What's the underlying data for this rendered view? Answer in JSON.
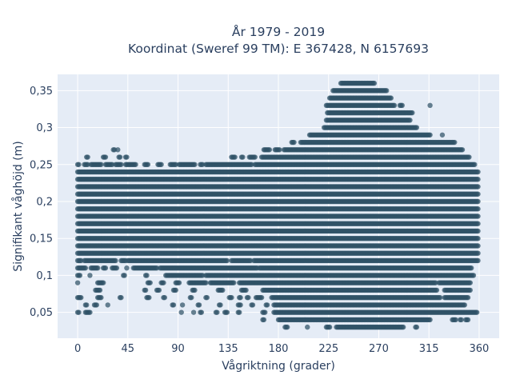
{
  "chart_data": {
    "type": "scatter",
    "title_line1": "År 1979 - 2019",
    "title_line2": "Koordinat (Sweref 99 TM): E 367428, N 6157693",
    "xlabel": "Vågriktning (grader)",
    "ylabel": "Signifikant våghöjd (m)",
    "xlim": [
      -18,
      378
    ],
    "ylim": [
      0.015,
      0.372
    ],
    "x_ticks": [
      0,
      45,
      90,
      135,
      180,
      225,
      270,
      315,
      360
    ],
    "x_tick_labels": [
      "0",
      "45",
      "90",
      "135",
      "180",
      "225",
      "270",
      "315",
      "360"
    ],
    "y_ticks": [
      0.05,
      0.1,
      0.15,
      0.2,
      0.25,
      0.3,
      0.35
    ],
    "y_tick_labels": [
      "0,05",
      "0,1",
      "0,15",
      "0,2",
      "0,25",
      "0,3",
      "0,35"
    ],
    "grid": true,
    "legend": "none",
    "marker_color": "#2f5266",
    "plot_background": "#e5ecf6",
    "value_step_m": 0.01,
    "density_bands": [
      {
        "y": 0.03,
        "x_ranges": [
          [
            186,
            188
          ],
          [
            206,
            206
          ],
          [
            223,
            226
          ],
          [
            232,
            292
          ],
          [
            303,
            304
          ]
        ]
      },
      {
        "y": 0.04,
        "x_ranges": [
          [
            166,
            167
          ],
          [
            180,
            316
          ],
          [
            336,
            339
          ],
          [
            343,
            344
          ],
          [
            348,
            350
          ]
        ]
      },
      {
        "y": 0.05,
        "x_ranges": [
          [
            0,
            1
          ],
          [
            7,
            11
          ],
          [
            93,
            93
          ],
          [
            104,
            104
          ],
          [
            110,
            111
          ],
          [
            124,
            125
          ],
          [
            132,
            134
          ],
          [
            144,
            145
          ],
          [
            166,
            168
          ],
          [
            176,
            358
          ]
        ]
      },
      {
        "y": 0.06,
        "x_ranges": [
          [
            7,
            8
          ],
          [
            15,
            17
          ],
          [
            27,
            27
          ],
          [
            85,
            86
          ],
          [
            94,
            94
          ],
          [
            108,
            109
          ],
          [
            127,
            128
          ],
          [
            144,
            146
          ],
          [
            156,
            157
          ],
          [
            169,
            170
          ],
          [
            176,
            347
          ]
        ]
      },
      {
        "y": 0.07,
        "x_ranges": [
          [
            0,
            3
          ],
          [
            18,
            21
          ],
          [
            38,
            39
          ],
          [
            62,
            64
          ],
          [
            77,
            78
          ],
          [
            101,
            102
          ],
          [
            115,
            116
          ],
          [
            136,
            138
          ],
          [
            145,
            146
          ],
          [
            152,
            153
          ],
          [
            160,
            165
          ],
          [
            174,
            325
          ],
          [
            329,
            350
          ]
        ]
      },
      {
        "y": 0.08,
        "x_ranges": [
          [
            16,
            20
          ],
          [
            60,
            61
          ],
          [
            71,
            73
          ],
          [
            86,
            88
          ],
          [
            103,
            105
          ],
          [
            126,
            130
          ],
          [
            147,
            151
          ],
          [
            166,
            322
          ],
          [
            329,
            352
          ]
        ]
      },
      {
        "y": 0.09,
        "x_ranges": [
          [
            0,
            0
          ],
          [
            18,
            23
          ],
          [
            63,
            65
          ],
          [
            75,
            77
          ],
          [
            88,
            91
          ],
          [
            100,
            115
          ],
          [
            119,
            140
          ],
          [
            145,
            321
          ],
          [
            324,
            352
          ]
        ]
      },
      {
        "y": 0.1,
        "x_ranges": [
          [
            0,
            2
          ],
          [
            11,
            11
          ],
          [
            41,
            42
          ],
          [
            61,
            62
          ],
          [
            79,
            112
          ],
          [
            115,
            355
          ]
        ]
      },
      {
        "y": 0.11,
        "x_ranges": [
          [
            0,
            7
          ],
          [
            12,
            18
          ],
          [
            23,
            25
          ],
          [
            31,
            35
          ],
          [
            44,
            44
          ],
          [
            50,
            71
          ],
          [
            74,
            161
          ],
          [
            163,
            353
          ]
        ]
      },
      {
        "y": 0.12,
        "x_ranges": [
          [
            0,
            3
          ],
          [
            6,
            34
          ],
          [
            39,
            43
          ],
          [
            45,
            134
          ],
          [
            138,
            155
          ],
          [
            158,
            359
          ]
        ]
      },
      {
        "y": 0.13,
        "x_ranges": [
          [
            0,
            359
          ]
        ]
      },
      {
        "y": 0.14,
        "x_ranges": [
          [
            0,
            359
          ]
        ]
      },
      {
        "y": 0.15,
        "x_ranges": [
          [
            0,
            359
          ]
        ]
      },
      {
        "y": 0.16,
        "x_ranges": [
          [
            0,
            359
          ]
        ]
      },
      {
        "y": 0.17,
        "x_ranges": [
          [
            0,
            359
          ]
        ]
      },
      {
        "y": 0.18,
        "x_ranges": [
          [
            0,
            359
          ]
        ]
      },
      {
        "y": 0.19,
        "x_ranges": [
          [
            0,
            359
          ]
        ]
      },
      {
        "y": 0.2,
        "x_ranges": [
          [
            0,
            359
          ]
        ]
      },
      {
        "y": 0.21,
        "x_ranges": [
          [
            0,
            359
          ]
        ]
      },
      {
        "y": 0.22,
        "x_ranges": [
          [
            0,
            359
          ]
        ]
      },
      {
        "y": 0.23,
        "x_ranges": [
          [
            0,
            359
          ]
        ]
      },
      {
        "y": 0.24,
        "x_ranges": [
          [
            0,
            359
          ]
        ]
      },
      {
        "y": 0.25,
        "x_ranges": [
          [
            0,
            1
          ],
          [
            6,
            9
          ],
          [
            12,
            21
          ],
          [
            25,
            31
          ],
          [
            34,
            39
          ],
          [
            43,
            52
          ],
          [
            60,
            63
          ],
          [
            72,
            75
          ],
          [
            83,
            88
          ],
          [
            91,
            105
          ],
          [
            110,
            112
          ],
          [
            115,
            156
          ],
          [
            159,
            356
          ]
        ]
      },
      {
        "y": 0.26,
        "x_ranges": [
          [
            8,
            9
          ],
          [
            23,
            25
          ],
          [
            37,
            38
          ],
          [
            43,
            44
          ],
          [
            138,
            141
          ],
          [
            147,
            148
          ],
          [
            154,
            159
          ],
          [
            165,
            351
          ]
        ]
      },
      {
        "y": 0.27,
        "x_ranges": [
          [
            32,
            33
          ],
          [
            36,
            36
          ],
          [
            167,
            172
          ],
          [
            177,
            181
          ],
          [
            185,
            345
          ]
        ]
      },
      {
        "y": 0.28,
        "x_ranges": [
          [
            192,
            194
          ],
          [
            200,
            338
          ]
        ]
      },
      {
        "y": 0.29,
        "x_ranges": [
          [
            208,
            316
          ],
          [
            327,
            327
          ]
        ]
      },
      {
        "y": 0.3,
        "x_ranges": [
          [
            221,
            304
          ]
        ]
      },
      {
        "y": 0.31,
        "x_ranges": [
          [
            223,
            298
          ]
        ]
      },
      {
        "y": 0.32,
        "x_ranges": [
          [
            224,
            300
          ]
        ]
      },
      {
        "y": 0.33,
        "x_ranges": [
          [
            223,
            284
          ],
          [
            289,
            291
          ],
          [
            316,
            316
          ]
        ]
      },
      {
        "y": 0.34,
        "x_ranges": [
          [
            226,
            281
          ]
        ]
      },
      {
        "y": 0.35,
        "x_ranges": [
          [
            229,
            277
          ]
        ]
      },
      {
        "y": 0.36,
        "x_ranges": [
          [
            236,
            266
          ]
        ]
      }
    ]
  }
}
